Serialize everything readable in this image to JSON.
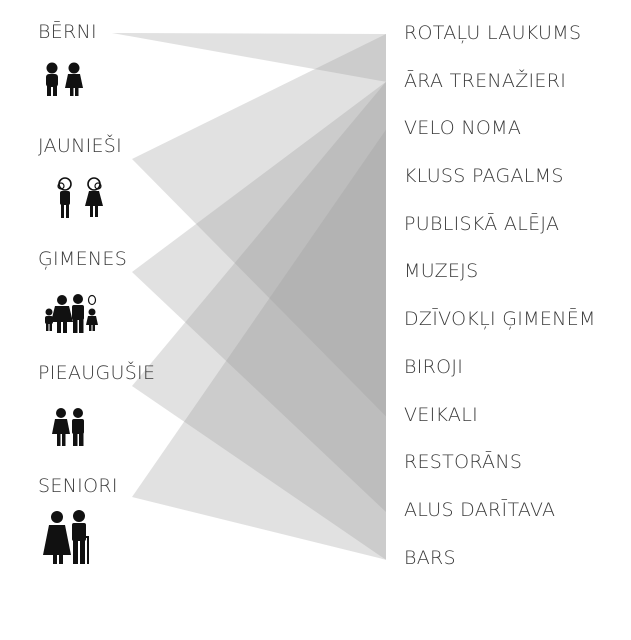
{
  "groups": [
    {
      "label": "BĒRNI",
      "icon": "children-icon"
    },
    {
      "label": "JAUNIEŠI",
      "icon": "youth-icon"
    },
    {
      "label": "ĢIMENES",
      "icon": "family-icon"
    },
    {
      "label": "PIEAUGUŠIE",
      "icon": "adults-icon"
    },
    {
      "label": "SENIORI",
      "icon": "seniors-icon"
    }
  ],
  "destinations": [
    "ROTAĻU LAUKUMS",
    "ĀRA TRENAŽIERI",
    "VELO NOMA",
    "KLUSS PAGALMS",
    "PUBLISKĀ ALĒJA",
    "MUZEJS",
    "DZĪVOKĻI ĢIMENĒM",
    "BIROJI",
    "VEIKALI",
    "RESTORĀNS",
    "ALUS DARĪTAVA",
    "BARS"
  ],
  "links": [
    {
      "group": 0,
      "from": 0,
      "to": 1
    },
    {
      "group": 1,
      "from": 0,
      "to": 8
    },
    {
      "group": 2,
      "from": 1,
      "to": 10
    },
    {
      "group": 3,
      "from": 1,
      "to": 11
    },
    {
      "group": 4,
      "from": 2,
      "to": 11
    }
  ],
  "colors": {
    "band": "#9a9a9a",
    "text": "#3a3a3a",
    "icon": "#111111"
  }
}
